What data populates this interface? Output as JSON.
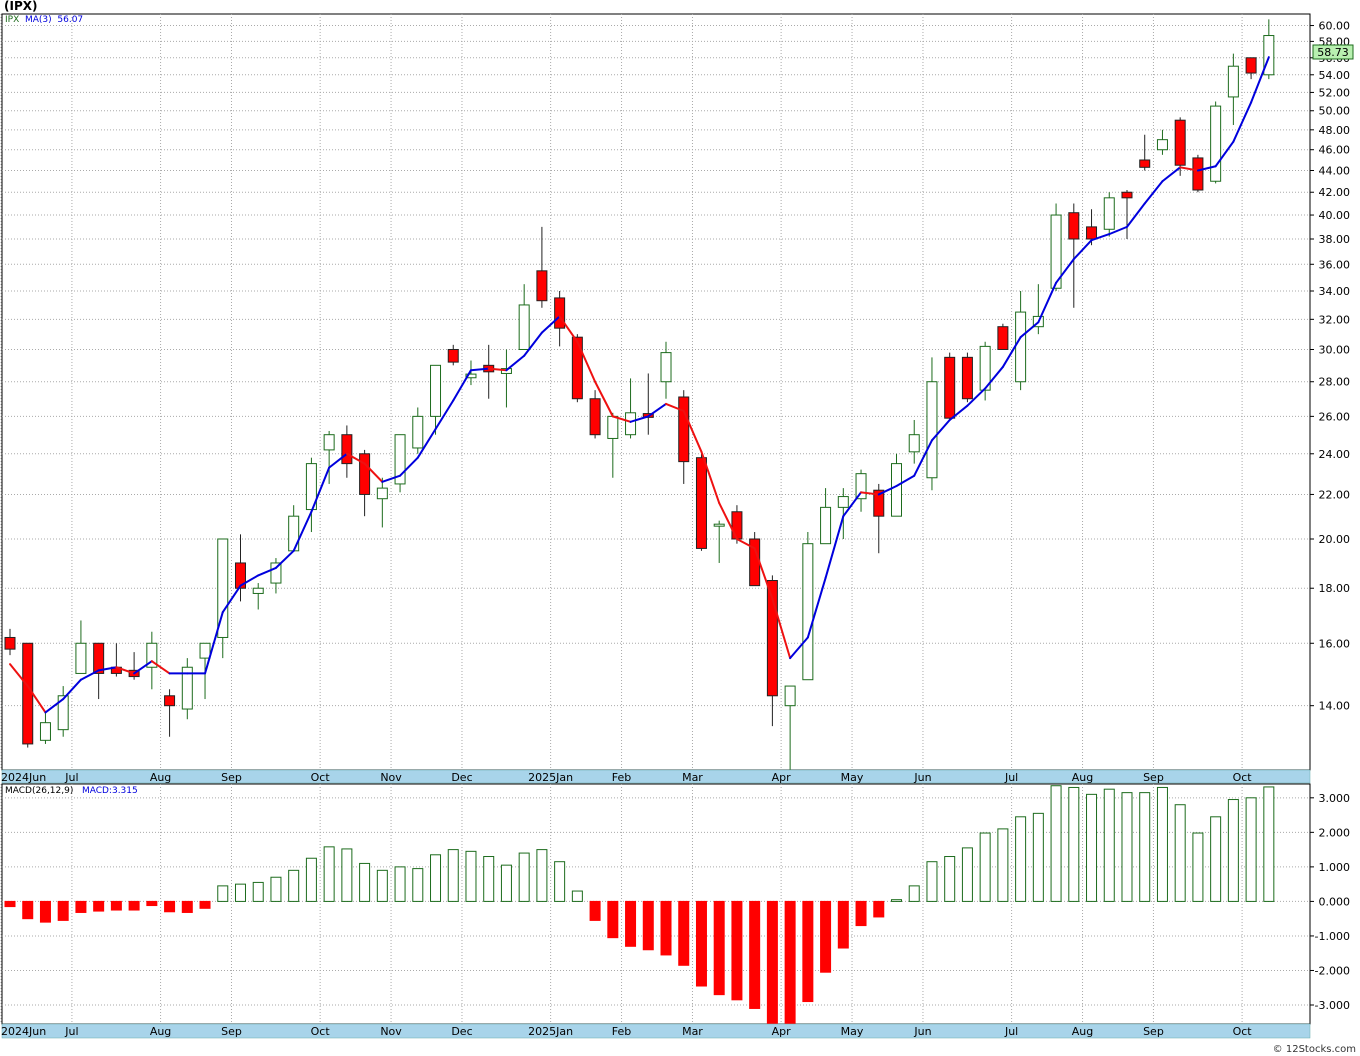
{
  "title": "(IPX)",
  "price_legend": {
    "symbol": "IPX",
    "ma_label": "MA(3)",
    "ma_value": "56.07"
  },
  "macd_legend": {
    "label": "MACD(26,12,9)",
    "value_label": "MACD:3.315"
  },
  "last_price_tag": "58.73",
  "watermark": "© 12Stocks.com",
  "colors": {
    "up": "#1c6b1c",
    "down": "#ff0000",
    "ma_up": "#0000dd",
    "ma_down": "#ee1111",
    "grid": "#aaaaaa",
    "axis_band": "#a8d4ea",
    "tag_fill": "#b8f0b0"
  },
  "chart_data": [
    {
      "type": "candlestick",
      "interval": "weekly",
      "y_scale": "log",
      "ylim": [
        12.2,
        61.5
      ],
      "y_ticks": [
        "14.00",
        "16.00",
        "18.00",
        "20.00",
        "22.00",
        "24.00",
        "26.00",
        "28.00",
        "30.00",
        "32.00",
        "34.00",
        "36.00",
        "38.00",
        "40.00",
        "42.00",
        "44.00",
        "46.00",
        "48.00",
        "50.00",
        "52.00",
        "54.00",
        "56.00",
        "58.00",
        "60.00"
      ],
      "x_labels": [
        {
          "label": "2024Jun",
          "i": 0
        },
        {
          "label": "Jul",
          "i": 4
        },
        {
          "label": "Aug",
          "i": 9
        },
        {
          "label": "Sep",
          "i": 13
        },
        {
          "label": "Oct",
          "i": 18
        },
        {
          "label": "Nov",
          "i": 22
        },
        {
          "label": "Dec",
          "i": 26
        },
        {
          "label": "2025Jan",
          "i": 31
        },
        {
          "label": "Feb",
          "i": 35
        },
        {
          "label": "Mar",
          "i": 39
        },
        {
          "label": "Apr",
          "i": 44
        },
        {
          "label": "May",
          "i": 48
        },
        {
          "label": "Jun",
          "i": 52
        },
        {
          "label": "Jul",
          "i": 57
        },
        {
          "label": "Aug",
          "i": 61
        },
        {
          "label": "Sep",
          "i": 65
        },
        {
          "label": "Oct",
          "i": 70
        }
      ],
      "candles": [
        [
          16.2,
          16.5,
          15.6,
          15.8
        ],
        [
          16.0,
          16.0,
          12.8,
          12.9
        ],
        [
          13.0,
          13.8,
          12.9,
          13.5
        ],
        [
          13.3,
          14.6,
          13.1,
          14.3
        ],
        [
          15.0,
          16.8,
          15.0,
          16.0
        ],
        [
          16.0,
          16.0,
          14.2,
          15.0
        ],
        [
          15.2,
          16.0,
          14.9,
          15.0
        ],
        [
          15.1,
          15.7,
          14.8,
          14.9
        ],
        [
          15.2,
          16.4,
          14.5,
          16.0
        ],
        [
          14.3,
          14.5,
          13.1,
          14.0
        ],
        [
          13.9,
          15.5,
          13.6,
          15.2
        ],
        [
          15.5,
          16.0,
          14.2,
          16.0
        ],
        [
          16.2,
          20.0,
          15.5,
          20.0
        ],
        [
          19.0,
          20.2,
          17.5,
          18.0
        ],
        [
          17.8,
          18.2,
          17.2,
          18.0
        ],
        [
          18.2,
          19.2,
          17.8,
          19.0
        ],
        [
          19.5,
          21.5,
          19.5,
          21.0
        ],
        [
          21.3,
          23.8,
          20.3,
          23.5
        ],
        [
          24.2,
          25.2,
          22.5,
          25.0
        ],
        [
          25.0,
          25.5,
          22.8,
          23.5
        ],
        [
          24.0,
          24.2,
          21.0,
          22.0
        ],
        [
          21.8,
          22.8,
          20.5,
          22.3
        ],
        [
          22.5,
          25.0,
          22.1,
          25.0
        ],
        [
          24.3,
          26.5,
          24.0,
          26.0
        ],
        [
          26.0,
          29.0,
          25.0,
          29.0
        ],
        [
          30.0,
          30.3,
          29.0,
          29.2
        ],
        [
          28.3,
          29.3,
          27.8,
          28.4
        ],
        [
          29.0,
          30.3,
          27.0,
          28.6
        ],
        [
          28.5,
          30.0,
          26.5,
          28.8
        ],
        [
          30.0,
          34.5,
          30.0,
          33.0
        ],
        [
          35.5,
          39.0,
          32.8,
          33.3
        ],
        [
          33.5,
          34.0,
          30.2,
          31.4
        ],
        [
          30.8,
          31.0,
          26.8,
          27.0
        ],
        [
          27.0,
          27.5,
          24.8,
          25.0
        ],
        [
          24.8,
          26.2,
          22.8,
          26.0
        ],
        [
          25.0,
          28.2,
          24.8,
          26.2
        ],
        [
          26.1,
          28.5,
          25.0,
          26.0
        ],
        [
          28.0,
          30.5,
          27.0,
          29.8
        ],
        [
          27.1,
          27.5,
          22.5,
          23.6
        ],
        [
          23.8,
          24.0,
          19.5,
          19.6
        ],
        [
          20.6,
          20.8,
          19.0,
          20.6
        ],
        [
          21.2,
          21.5,
          19.8,
          20.0
        ],
        [
          20.0,
          20.3,
          18.1,
          18.1
        ],
        [
          18.3,
          18.5,
          13.4,
          14.3
        ],
        [
          14.0,
          14.6,
          12.2,
          14.6
        ],
        [
          14.8,
          20.3,
          14.8,
          19.8
        ],
        [
          19.8,
          22.3,
          19.8,
          21.4
        ],
        [
          21.4,
          22.3,
          20.0,
          21.9
        ],
        [
          21.8,
          23.2,
          21.2,
          23.0
        ],
        [
          22.2,
          22.5,
          19.4,
          21.0
        ],
        [
          21.0,
          24.0,
          21.0,
          23.5
        ],
        [
          24.1,
          25.8,
          23.5,
          25.0
        ],
        [
          22.8,
          29.5,
          22.2,
          28.0
        ],
        [
          29.5,
          29.8,
          25.8,
          25.9
        ],
        [
          29.5,
          29.8,
          26.8,
          27.0
        ],
        [
          27.5,
          30.5,
          26.9,
          30.2
        ],
        [
          31.5,
          31.7,
          30.0,
          30.0
        ],
        [
          28.0,
          34.0,
          27.5,
          32.5
        ],
        [
          31.5,
          34.5,
          31.0,
          32.2
        ],
        [
          34.2,
          41.0,
          34.0,
          40.0
        ],
        [
          40.2,
          41.0,
          32.8,
          38.0
        ],
        [
          39.0,
          40.5,
          37.5,
          38.0
        ],
        [
          38.8,
          42.0,
          38.2,
          41.5
        ],
        [
          42.0,
          42.2,
          38.0,
          41.5
        ],
        [
          45.0,
          47.5,
          44.0,
          44.3
        ],
        [
          46.0,
          48.0,
          45.5,
          47.0
        ],
        [
          49.0,
          49.3,
          43.5,
          44.5
        ],
        [
          45.2,
          45.5,
          42.0,
          42.2
        ],
        [
          43.0,
          51.0,
          42.8,
          50.5
        ],
        [
          51.5,
          56.5,
          48.5,
          55.0
        ],
        [
          56.0,
          56.0,
          53.5,
          54.2
        ],
        [
          54.0,
          60.8,
          53.5,
          58.73
        ]
      ],
      "ma_label": "MA(3)",
      "ma_values": [
        15.3,
        14.6,
        13.8,
        14.2,
        14.8,
        15.1,
        15.2,
        15.0,
        15.4,
        15.0,
        15.0,
        15.0,
        17.1,
        18.1,
        18.5,
        18.8,
        19.5,
        21.2,
        23.3,
        24.0,
        23.5,
        22.6,
        22.9,
        23.8,
        25.3,
        26.9,
        28.7,
        28.8,
        28.7,
        29.6,
        31.1,
        32.2,
        30.5,
        28.0,
        26.0,
        25.7,
        26.0,
        26.7,
        26.3,
        24.1,
        21.6,
        20.0,
        19.6,
        17.6,
        15.5,
        16.2,
        18.4,
        21.0,
        22.1,
        22.0,
        22.4,
        22.9,
        24.7,
        25.8,
        26.6,
        27.6,
        28.9,
        30.8,
        31.8,
        34.6,
        36.4,
        37.9,
        38.4,
        39.0,
        41.0,
        43.0,
        44.3,
        44.0,
        44.4,
        46.8,
        50.9,
        56.07
      ]
    },
    {
      "type": "bar",
      "name": "MACD(26,12,9)",
      "ylim": [
        -3.55,
        3.4
      ],
      "y_ticks": [
        "3.000",
        "2.000",
        "1.000",
        "0.000",
        "-1.000",
        "-2.000",
        "-3.000"
      ],
      "values": [
        -0.15,
        -0.5,
        -0.6,
        -0.55,
        -0.32,
        -0.28,
        -0.25,
        -0.25,
        -0.12,
        -0.3,
        -0.32,
        -0.2,
        0.45,
        0.5,
        0.55,
        0.7,
        0.9,
        1.25,
        1.58,
        1.52,
        1.1,
        0.9,
        1.0,
        0.95,
        1.35,
        1.5,
        1.45,
        1.3,
        1.05,
        1.4,
        1.5,
        1.15,
        0.3,
        -0.55,
        -1.05,
        -1.3,
        -1.4,
        -1.55,
        -1.85,
        -2.45,
        -2.7,
        -2.85,
        -3.1,
        -3.6,
        -3.75,
        -2.9,
        -2.05,
        -1.35,
        -0.7,
        -0.45,
        0.05,
        0.45,
        1.15,
        1.3,
        1.55,
        1.98,
        2.1,
        2.45,
        2.55,
        3.35,
        3.3,
        3.1,
        3.25,
        3.15,
        3.15,
        3.3,
        2.8,
        1.98,
        2.45,
        2.95,
        3.0,
        3.315
      ],
      "x_labels": [
        {
          "label": "2024Jun",
          "i": 0
        },
        {
          "label": "Jul",
          "i": 4
        },
        {
          "label": "Aug",
          "i": 9
        },
        {
          "label": "Sep",
          "i": 13
        },
        {
          "label": "Oct",
          "i": 18
        },
        {
          "label": "Nov",
          "i": 22
        },
        {
          "label": "Dec",
          "i": 26
        },
        {
          "label": "2025Jan",
          "i": 31
        },
        {
          "label": "Feb",
          "i": 35
        },
        {
          "label": "Mar",
          "i": 39
        },
        {
          "label": "Apr",
          "i": 44
        },
        {
          "label": "May",
          "i": 48
        },
        {
          "label": "Jun",
          "i": 52
        },
        {
          "label": "Jul",
          "i": 57
        },
        {
          "label": "Aug",
          "i": 61
        },
        {
          "label": "Sep",
          "i": 65
        },
        {
          "label": "Oct",
          "i": 70
        }
      ]
    }
  ]
}
